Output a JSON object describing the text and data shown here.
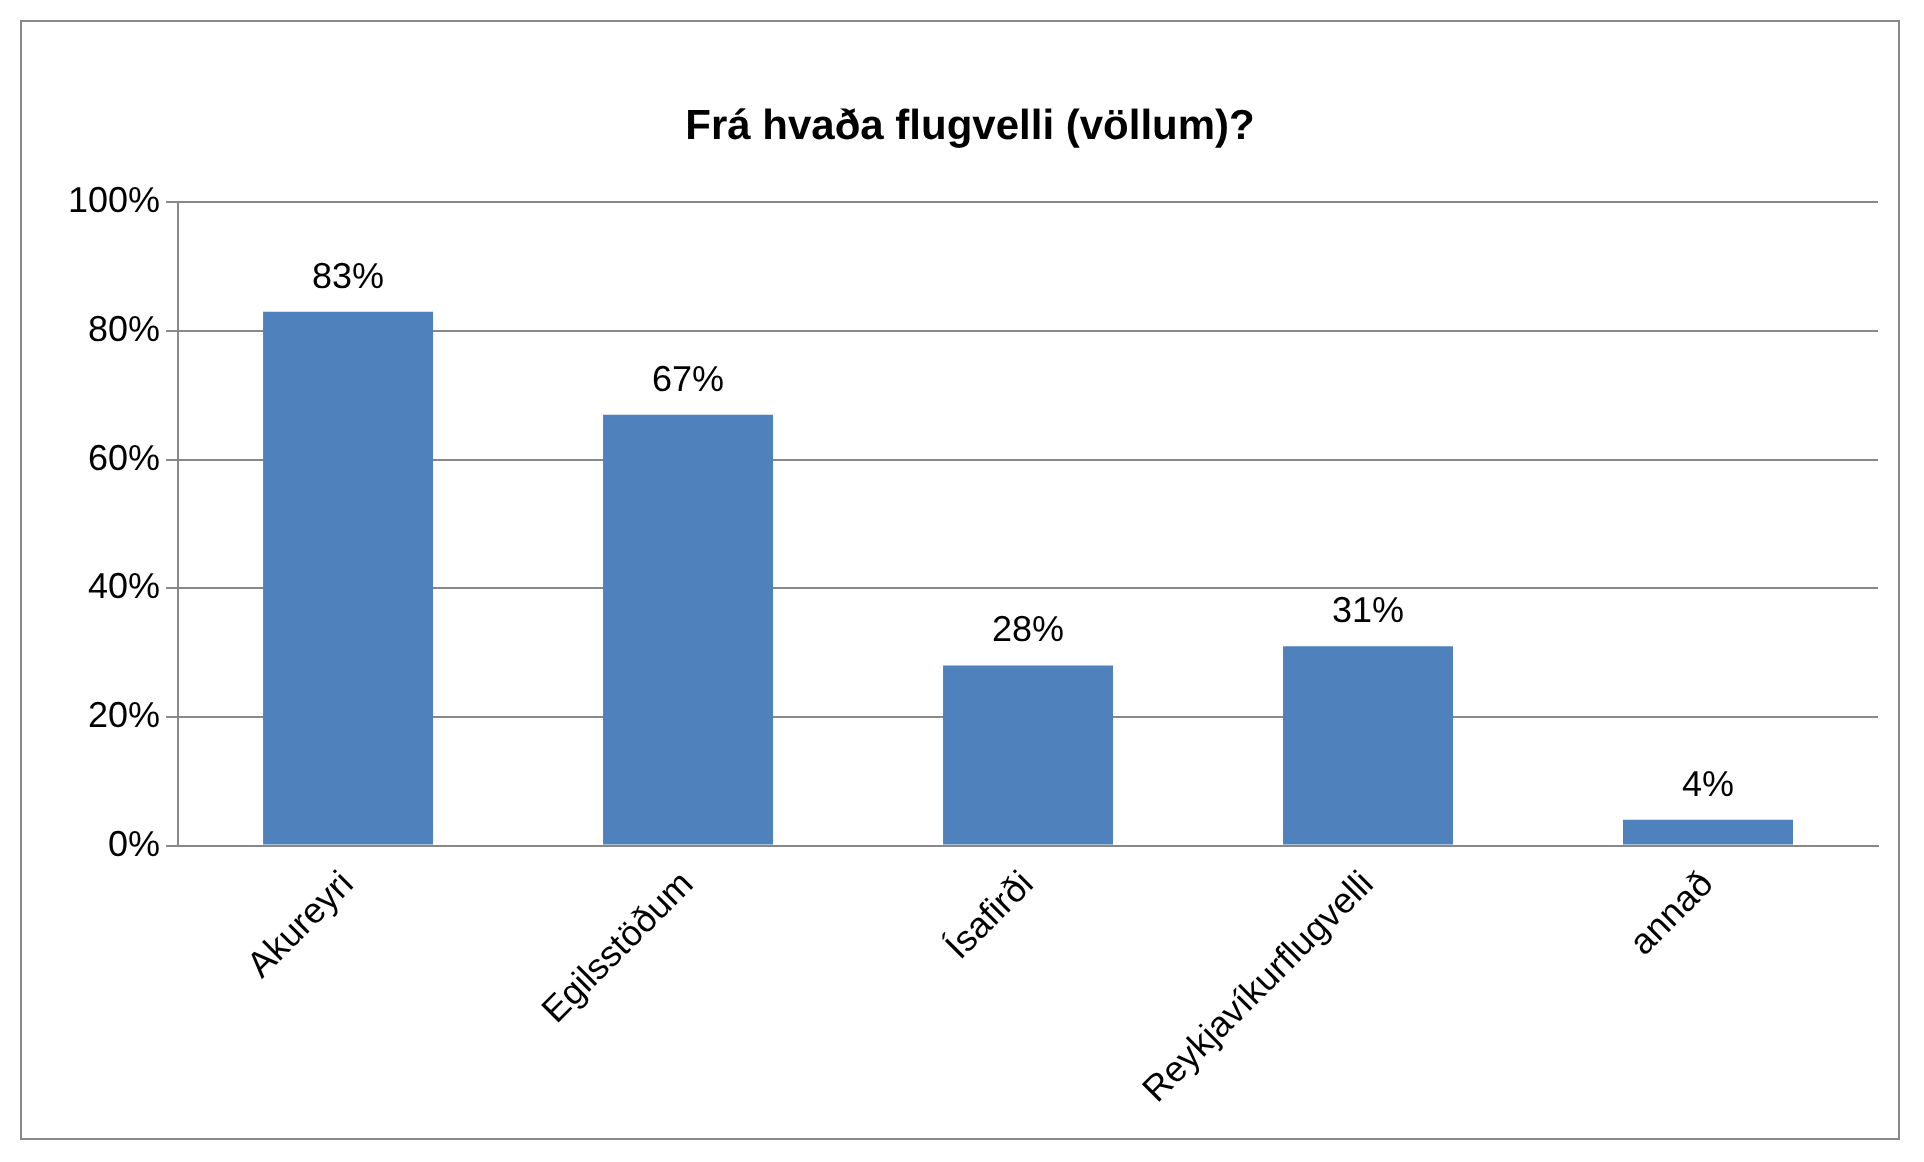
{
  "chart_data": {
    "type": "bar",
    "title": "Frá hvaða flugvelli (völlum)?",
    "categories": [
      "Akureyri",
      "Egilsstöðum",
      "Ísafirði",
      "Reykjavíkurflugvelli",
      "annað"
    ],
    "values": [
      83,
      67,
      28,
      31,
      4
    ],
    "value_labels": [
      "83%",
      "67%",
      "28%",
      "31%",
      "4%"
    ],
    "color": "#4f81bd",
    "ylim": [
      0,
      100
    ],
    "yticks": [
      {
        "value": 0,
        "label": "0%"
      },
      {
        "value": 20,
        "label": "20%"
      },
      {
        "value": 40,
        "label": "40%"
      },
      {
        "value": 60,
        "label": "60%"
      },
      {
        "value": 80,
        "label": "80%"
      },
      {
        "value": 100,
        "label": "100%"
      }
    ],
    "grid": "y"
  }
}
